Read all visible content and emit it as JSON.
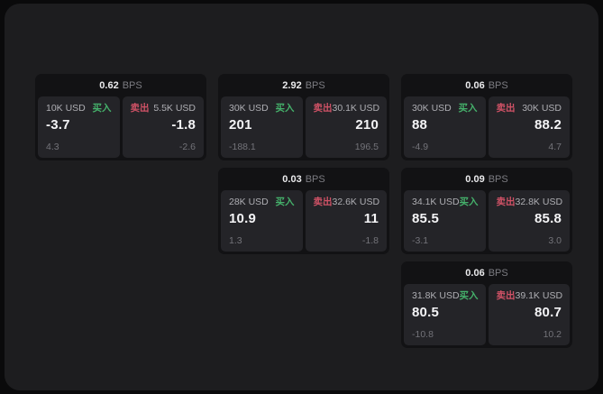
{
  "colors": {
    "buy": "#45b16b",
    "sell": "#d05266",
    "page_bg": "#0a0a0b",
    "window_bg": "#1d1d1f",
    "card_bg": "#121214",
    "panel_bg": "#242428"
  },
  "labels": {
    "bps": "BPS",
    "buy": "买入",
    "sell": "卖出"
  },
  "cards": [
    {
      "row": 1,
      "col": 1,
      "bps": "0.62",
      "buy": {
        "amount": "10K USD",
        "price": "-3.7",
        "delta": "4.3"
      },
      "sell": {
        "amount": "5.5K USD",
        "price": "-1.8",
        "delta": "-2.6"
      }
    },
    {
      "row": 1,
      "col": 2,
      "bps": "2.92",
      "buy": {
        "amount": "30K USD",
        "price": "201",
        "delta": "-188.1"
      },
      "sell": {
        "amount": "30.1K USD",
        "price": "210",
        "delta": "196.5"
      }
    },
    {
      "row": 1,
      "col": 3,
      "bps": "0.06",
      "buy": {
        "amount": "30K USD",
        "price": "88",
        "delta": "-4.9"
      },
      "sell": {
        "amount": "30K USD",
        "price": "88.2",
        "delta": "4.7"
      }
    },
    {
      "row": 2,
      "col": 2,
      "bps": "0.03",
      "buy": {
        "amount": "28K USD",
        "price": "10.9",
        "delta": "1.3"
      },
      "sell": {
        "amount": "32.6K USD",
        "price": "11",
        "delta": "-1.8"
      }
    },
    {
      "row": 2,
      "col": 3,
      "bps": "0.09",
      "buy": {
        "amount": "34.1K USD",
        "price": "85.5",
        "delta": "-3.1"
      },
      "sell": {
        "amount": "32.8K USD",
        "price": "85.8",
        "delta": "3.0"
      }
    },
    {
      "row": 3,
      "col": 3,
      "bps": "0.06",
      "buy": {
        "amount": "31.8K USD",
        "price": "80.5",
        "delta": "-10.8"
      },
      "sell": {
        "amount": "39.1K USD",
        "price": "80.7",
        "delta": "10.2"
      }
    }
  ]
}
